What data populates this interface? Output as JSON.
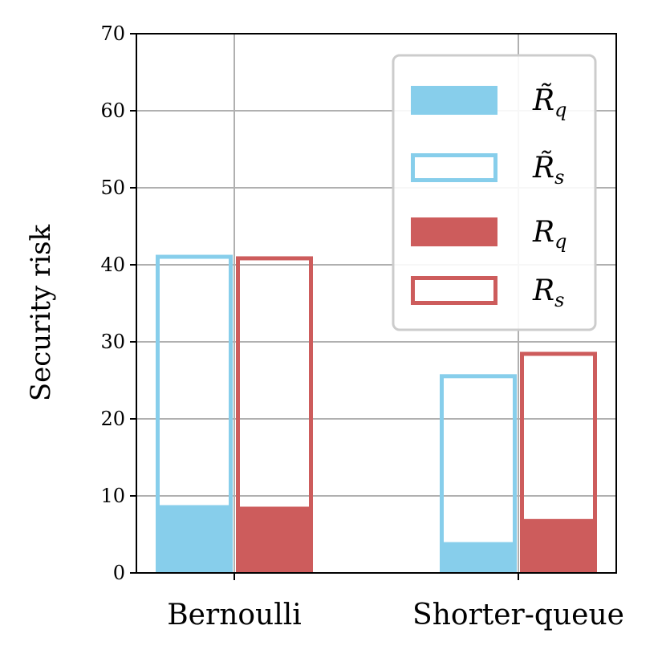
{
  "chart_data": {
    "type": "bar",
    "title": "",
    "xlabel": "",
    "ylabel": "Security risk",
    "ylim": [
      0,
      70
    ],
    "yticks": [
      0,
      10,
      20,
      30,
      40,
      50,
      60,
      70
    ],
    "grid": true,
    "legend_position": "top-right",
    "categories": [
      "Bernoulli",
      "Shorter-queue"
    ],
    "series": [
      {
        "name": "R̃q",
        "base": "R",
        "tilde": true,
        "sub": "q",
        "style": "filled",
        "color": "#87ceeb",
        "values": [
          8.8,
          4.0
        ]
      },
      {
        "name": "R̃s",
        "base": "R",
        "tilde": true,
        "sub": "s",
        "style": "outline",
        "color": "#87ceeb",
        "values": [
          41.3,
          25.8
        ]
      },
      {
        "name": "Rq",
        "base": "R",
        "tilde": false,
        "sub": "q",
        "style": "filled",
        "color": "#cd5c5c",
        "values": [
          8.6,
          7.0
        ]
      },
      {
        "name": "Rs",
        "base": "R",
        "tilde": false,
        "sub": "s",
        "style": "outline",
        "color": "#cd5c5c",
        "values": [
          41.1,
          28.7
        ]
      }
    ]
  }
}
